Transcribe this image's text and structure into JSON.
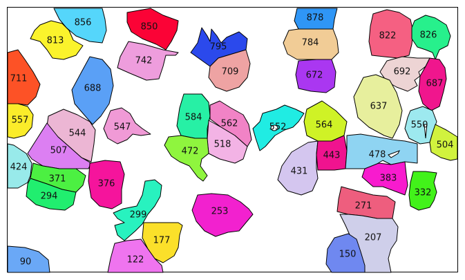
{
  "regions": [
    {
      "id": "856",
      "label": "856",
      "color": "#55d6fb"
    },
    {
      "id": "813",
      "label": "813",
      "color": "#fbf32c"
    },
    {
      "id": "850",
      "label": "850",
      "color": "#fb0336"
    },
    {
      "id": "742",
      "label": "742",
      "color": "#ee9ddd"
    },
    {
      "id": "795",
      "label": "795",
      "color": "#2b49ec"
    },
    {
      "id": "709",
      "label": "709",
      "color": "#eea3a3"
    },
    {
      "id": "878",
      "label": "878",
      "color": "#2f96f6"
    },
    {
      "id": "784",
      "label": "784",
      "color": "#f1cc96"
    },
    {
      "id": "672",
      "label": "672",
      "color": "#aa37f1"
    },
    {
      "id": "822",
      "label": "822",
      "color": "#f56082"
    },
    {
      "id": "826",
      "label": "826",
      "color": "#27f08c"
    },
    {
      "id": "692",
      "label": "692",
      "color": "#edd4d4"
    },
    {
      "id": "687",
      "label": "687",
      "color": "#f0168d"
    },
    {
      "id": "711",
      "label": "711",
      "color": "#fd5226"
    },
    {
      "id": "688",
      "label": "688",
      "color": "#5aa0f6"
    },
    {
      "id": "557",
      "label": "557",
      "color": "#fbec2a"
    },
    {
      "id": "544",
      "label": "544",
      "color": "#ecb6d4"
    },
    {
      "id": "507",
      "label": "507",
      "color": "#dc7ff2"
    },
    {
      "id": "547",
      "label": "547",
      "color": "#f09ad6"
    },
    {
      "id": "584",
      "label": "584",
      "color": "#27f0a5"
    },
    {
      "id": "562",
      "label": "562",
      "color": "#f183c6"
    },
    {
      "id": "518",
      "label": "518",
      "color": "#f3b3e5"
    },
    {
      "id": "472",
      "label": "472",
      "color": "#8ff53e"
    },
    {
      "id": "552",
      "label": "552",
      "color": "#20ece3"
    },
    {
      "id": "564",
      "label": "564",
      "color": "#cff226"
    },
    {
      "id": "637",
      "label": "637",
      "color": "#e7ef9d"
    },
    {
      "id": "550",
      "label": "550",
      "color": "#9de9ef"
    },
    {
      "id": "504",
      "label": "504",
      "color": "#d1f23e"
    },
    {
      "id": "424",
      "label": "424",
      "color": "#98eaea"
    },
    {
      "id": "371",
      "label": "371",
      "color": "#4cf042"
    },
    {
      "id": "294",
      "label": "294",
      "color": "#21ee6f"
    },
    {
      "id": "376",
      "label": "376",
      "color": "#f5149c"
    },
    {
      "id": "431",
      "label": "431",
      "color": "#d4c6ef"
    },
    {
      "id": "443",
      "label": "443",
      "color": "#f0138f"
    },
    {
      "id": "478",
      "label": "478",
      "color": "#8fd4f2"
    },
    {
      "id": "383",
      "label": "383",
      "color": "#f81bce"
    },
    {
      "id": "332",
      "label": "332",
      "color": "#42f21a"
    },
    {
      "id": "299",
      "label": "299",
      "color": "#28f2bf"
    },
    {
      "id": "253",
      "label": "253",
      "color": "#f221cf"
    },
    {
      "id": "177",
      "label": "177",
      "color": "#fbe02a"
    },
    {
      "id": "271",
      "label": "271",
      "color": "#ee5e7e"
    },
    {
      "id": "207",
      "label": "207",
      "color": "#cfcfea"
    },
    {
      "id": "150",
      "label": "150",
      "color": "#6f88f0"
    },
    {
      "id": "122",
      "label": "122",
      "color": "#ef74ef"
    },
    {
      "id": "90",
      "label": "90",
      "color": "#6aa8f6"
    }
  ]
}
